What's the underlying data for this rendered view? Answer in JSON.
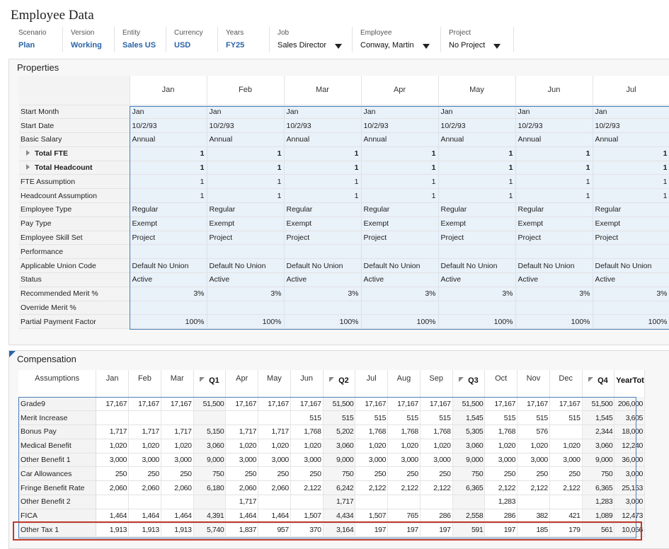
{
  "app": {
    "title": "Employee Data"
  },
  "pov": {
    "scenario": {
      "label": "Scenario",
      "value": "Plan"
    },
    "version": {
      "label": "Version",
      "value": "Working"
    },
    "entity": {
      "label": "Entity",
      "value": "Sales US"
    },
    "currency": {
      "label": "Currency",
      "value": "USD"
    },
    "years": {
      "label": "Years",
      "value": "FY25"
    },
    "job": {
      "label": "Job",
      "value": "Sales Director"
    },
    "employee": {
      "label": "Employee",
      "value": "Conway, Martin"
    },
    "project": {
      "label": "Project",
      "value": "No Project"
    }
  },
  "properties": {
    "title": "Properties",
    "columns": [
      "Jan",
      "Feb",
      "Mar",
      "Apr",
      "May",
      "Jun",
      "Jul"
    ],
    "rows": [
      {
        "label": "Start Month",
        "values": [
          "Jan",
          "Jan",
          "Jan",
          "Jan",
          "Jan",
          "Jan",
          "Jan"
        ],
        "align": "left"
      },
      {
        "label": "Start Date",
        "values": [
          "10/2/93",
          "10/2/93",
          "10/2/93",
          "10/2/93",
          "10/2/93",
          "10/2/93",
          "10/2/93"
        ],
        "align": "left"
      },
      {
        "label": "Basic Salary",
        "values": [
          "Annual",
          "Annual",
          "Annual",
          "Annual",
          "Annual",
          "Annual",
          "Annual"
        ],
        "align": "left"
      },
      {
        "label": "Total FTE",
        "values": [
          "1",
          "1",
          "1",
          "1",
          "1",
          "1",
          "1"
        ],
        "align": "right",
        "bold": true,
        "toggle": true
      },
      {
        "label": "Total Headcount",
        "values": [
          "1",
          "1",
          "1",
          "1",
          "1",
          "1",
          "1"
        ],
        "align": "right",
        "bold": true,
        "toggle": true
      },
      {
        "label": "FTE Assumption",
        "values": [
          "1",
          "1",
          "1",
          "1",
          "1",
          "1",
          "1"
        ],
        "align": "right"
      },
      {
        "label": "Headcount Assumption",
        "values": [
          "1",
          "1",
          "1",
          "1",
          "1",
          "1",
          "1"
        ],
        "align": "right"
      },
      {
        "label": "Employee Type",
        "values": [
          "Regular",
          "Regular",
          "Regular",
          "Regular",
          "Regular",
          "Regular",
          "Regular"
        ],
        "align": "left"
      },
      {
        "label": "Pay Type",
        "values": [
          "Exempt",
          "Exempt",
          "Exempt",
          "Exempt",
          "Exempt",
          "Exempt",
          "Exempt"
        ],
        "align": "left"
      },
      {
        "label": "Employee Skill Set",
        "values": [
          "Project",
          "Project",
          "Project",
          "Project",
          "Project",
          "Project",
          "Project"
        ],
        "align": "left"
      },
      {
        "label": "Performance",
        "values": [
          "",
          "",
          "",
          "",
          "",
          "",
          ""
        ],
        "align": "left"
      },
      {
        "label": "Applicable Union Code",
        "values": [
          "Default No Union",
          "Default No Union",
          "Default No Union",
          "Default No Union",
          "Default No Union",
          "Default No Union",
          "Default No Union"
        ],
        "align": "left"
      },
      {
        "label": "Status",
        "values": [
          "Active",
          "Active",
          "Active",
          "Active",
          "Active",
          "Active",
          "Active"
        ],
        "align": "left"
      },
      {
        "label": "Recommended Merit %",
        "values": [
          "3%",
          "3%",
          "3%",
          "3%",
          "3%",
          "3%",
          "3%"
        ],
        "align": "right"
      },
      {
        "label": "Override Merit %",
        "values": [
          "",
          "",
          "",
          "",
          "",
          "",
          ""
        ],
        "align": "right"
      },
      {
        "label": "Partial Payment Factor",
        "values": [
          "100%",
          "100%",
          "100%",
          "100%",
          "100%",
          "100%",
          "100%"
        ],
        "align": "right"
      }
    ]
  },
  "compensation": {
    "title": "Compensation",
    "header_label": "Assumptions",
    "columns": [
      {
        "label": "Jan"
      },
      {
        "label": "Feb"
      },
      {
        "label": "Mar"
      },
      {
        "label": "Q1",
        "quarter": true
      },
      {
        "label": "Apr"
      },
      {
        "label": "May"
      },
      {
        "label": "Jun"
      },
      {
        "label": "Q2",
        "quarter": true
      },
      {
        "label": "Jul"
      },
      {
        "label": "Aug"
      },
      {
        "label": "Sep"
      },
      {
        "label": "Q3",
        "quarter": true
      },
      {
        "label": "Oct"
      },
      {
        "label": "Nov"
      },
      {
        "label": "Dec"
      },
      {
        "label": "Q4",
        "quarter": true
      },
      {
        "label": "YearTotal",
        "quarter": true
      }
    ],
    "rows": [
      {
        "label": "Grade9",
        "values": [
          "17,167",
          "17,167",
          "17,167",
          "51,500",
          "17,167",
          "17,167",
          "17,167",
          "51,500",
          "17,167",
          "17,167",
          "17,167",
          "51,500",
          "17,167",
          "17,167",
          "17,167",
          "51,500",
          "206,000"
        ]
      },
      {
        "label": "Merit Increase",
        "values": [
          "",
          "",
          "",
          "",
          "",
          "",
          "515",
          "515",
          "515",
          "515",
          "515",
          "1,545",
          "515",
          "515",
          "515",
          "1,545",
          "3,605"
        ]
      },
      {
        "label": "Bonus Pay",
        "values": [
          "1,717",
          "1,717",
          "1,717",
          "5,150",
          "1,717",
          "1,717",
          "1,768",
          "5,202",
          "1,768",
          "1,768",
          "1,768",
          "5,305",
          "1,768",
          "576",
          "",
          "2,344",
          "18,000"
        ]
      },
      {
        "label": "Medical Benefit",
        "values": [
          "1,020",
          "1,020",
          "1,020",
          "3,060",
          "1,020",
          "1,020",
          "1,020",
          "3,060",
          "1,020",
          "1,020",
          "1,020",
          "3,060",
          "1,020",
          "1,020",
          "1,020",
          "3,060",
          "12,240"
        ]
      },
      {
        "label": "Other Benefit 1",
        "values": [
          "3,000",
          "3,000",
          "3,000",
          "9,000",
          "3,000",
          "3,000",
          "3,000",
          "9,000",
          "3,000",
          "3,000",
          "3,000",
          "9,000",
          "3,000",
          "3,000",
          "3,000",
          "9,000",
          "36,000"
        ]
      },
      {
        "label": "Car Allowances",
        "values": [
          "250",
          "250",
          "250",
          "750",
          "250",
          "250",
          "250",
          "750",
          "250",
          "250",
          "250",
          "750",
          "250",
          "250",
          "250",
          "750",
          "3,000"
        ]
      },
      {
        "label": "Fringe Benefit Rate",
        "values": [
          "2,060",
          "2,060",
          "2,060",
          "6,180",
          "2,060",
          "2,060",
          "2,122",
          "6,242",
          "2,122",
          "2,122",
          "2,122",
          "6,365",
          "2,122",
          "2,122",
          "2,122",
          "6,365",
          "25,153"
        ]
      },
      {
        "label": "Other Benefit 2",
        "values": [
          "",
          "",
          "",
          "",
          "1,717",
          "",
          "",
          "1,717",
          "",
          "",
          "",
          "",
          "1,283",
          "",
          "",
          "1,283",
          "3,000"
        ]
      },
      {
        "label": "FICA",
        "values": [
          "1,464",
          "1,464",
          "1,464",
          "4,391",
          "1,464",
          "1,464",
          "1,507",
          "4,434",
          "1,507",
          "765",
          "286",
          "2,558",
          "286",
          "382",
          "421",
          "1,089",
          "12,473"
        ]
      },
      {
        "label": "Other Tax 1",
        "values": [
          "1,913",
          "1,913",
          "1,913",
          "5,740",
          "1,837",
          "957",
          "370",
          "3,164",
          "197",
          "197",
          "197",
          "591",
          "197",
          "185",
          "179",
          "561",
          "10,056"
        ]
      }
    ]
  }
}
